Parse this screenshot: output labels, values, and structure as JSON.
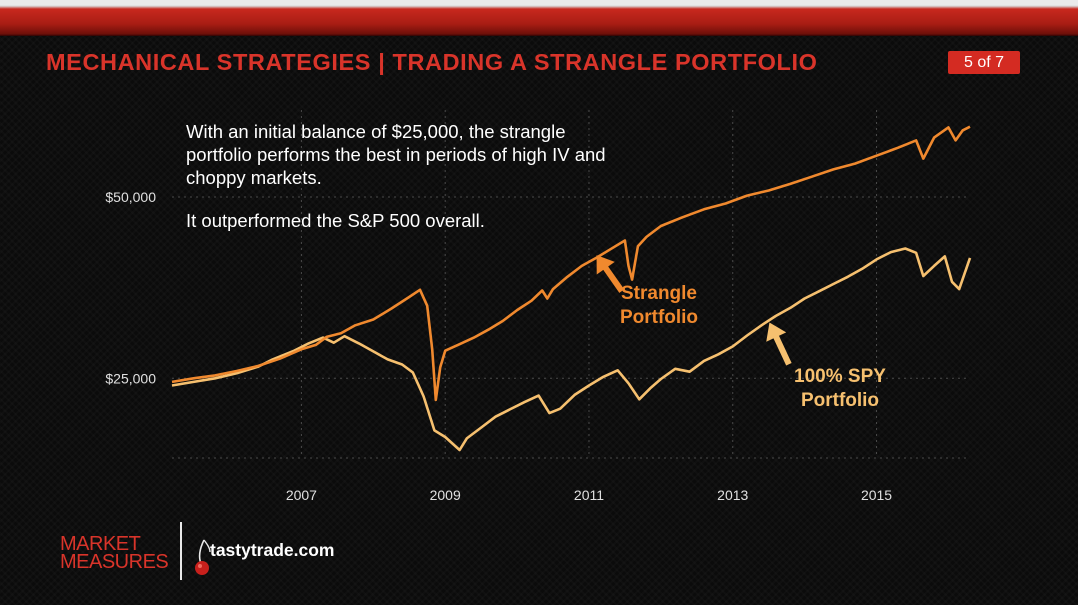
{
  "header": {
    "title": "MECHANICAL STRATEGIES | TRADING A STRANGLE PORTFOLIO",
    "page_indicator": "5 of 7"
  },
  "caption": {
    "paragraph1": "With an initial balance of $25,000, the strangle portfolio performs the best in periods of high IV and choppy markets.",
    "paragraph2": "It outperformed the S&P 500 overall."
  },
  "annotations": {
    "strangle": [
      "Strangle",
      "Portfolio"
    ],
    "spy": [
      "100% SPY",
      "Portfolio"
    ]
  },
  "footer": {
    "brand_line1": "MARKET",
    "brand_line2": "MEASURES",
    "partner": "tastytrade.com"
  },
  "colors": {
    "title_red": "#d9342a",
    "strangle": "#f0892e",
    "spy": "#f6c06f",
    "grid": "#4a4a4a"
  },
  "icons": [
    "up-arrow-icon",
    "cherry-icon"
  ],
  "chart_data": {
    "type": "line",
    "title": "",
    "xlabel": "",
    "ylabel": "",
    "xlim": [
      2005.2,
      2016.3
    ],
    "ylim": [
      14000,
      62000
    ],
    "x_ticks": [
      2007,
      2009,
      2011,
      2013,
      2015
    ],
    "y_ticks": [
      25000,
      50000
    ],
    "y_tick_labels": [
      "$25,000",
      "$50,000"
    ],
    "grid": true,
    "legend": "inline annotations",
    "series": [
      {
        "name": "Strangle Portfolio",
        "points": [
          [
            2005.2,
            24500
          ],
          [
            2005.5,
            25000
          ],
          [
            2005.8,
            25400
          ],
          [
            2006.1,
            26000
          ],
          [
            2006.4,
            26700
          ],
          [
            2006.7,
            27700
          ],
          [
            2007.0,
            29000
          ],
          [
            2007.2,
            29600
          ],
          [
            2007.35,
            30700
          ],
          [
            2007.55,
            31200
          ],
          [
            2007.75,
            32300
          ],
          [
            2008.0,
            33100
          ],
          [
            2008.25,
            34600
          ],
          [
            2008.5,
            36200
          ],
          [
            2008.65,
            37200
          ],
          [
            2008.75,
            35000
          ],
          [
            2008.82,
            29000
          ],
          [
            2008.87,
            22000
          ],
          [
            2008.93,
            26500
          ],
          [
            2009.0,
            28800
          ],
          [
            2009.2,
            29700
          ],
          [
            2009.4,
            30600
          ],
          [
            2009.6,
            31700
          ],
          [
            2009.8,
            32900
          ],
          [
            2010.0,
            34400
          ],
          [
            2010.2,
            35700
          ],
          [
            2010.35,
            37100
          ],
          [
            2010.42,
            36000
          ],
          [
            2010.5,
            37300
          ],
          [
            2010.7,
            39000
          ],
          [
            2010.9,
            40500
          ],
          [
            2011.1,
            41600
          ],
          [
            2011.3,
            42800
          ],
          [
            2011.5,
            44000
          ],
          [
            2011.55,
            40500
          ],
          [
            2011.6,
            38600
          ],
          [
            2011.68,
            43200
          ],
          [
            2011.8,
            44500
          ],
          [
            2012.0,
            46000
          ],
          [
            2012.3,
            47200
          ],
          [
            2012.6,
            48300
          ],
          [
            2012.9,
            49100
          ],
          [
            2013.2,
            50200
          ],
          [
            2013.5,
            50900
          ],
          [
            2013.8,
            51800
          ],
          [
            2014.1,
            52800
          ],
          [
            2014.4,
            53800
          ],
          [
            2014.7,
            54600
          ],
          [
            2015.0,
            55700
          ],
          [
            2015.3,
            56800
          ],
          [
            2015.55,
            57800
          ],
          [
            2015.65,
            55300
          ],
          [
            2015.8,
            58200
          ],
          [
            2016.0,
            59600
          ],
          [
            2016.1,
            57800
          ],
          [
            2016.2,
            59200
          ],
          [
            2016.3,
            59700
          ]
        ]
      },
      {
        "name": "100% SPY Portfolio",
        "points": [
          [
            2005.2,
            24000
          ],
          [
            2005.5,
            24500
          ],
          [
            2005.8,
            25000
          ],
          [
            2006.1,
            25700
          ],
          [
            2006.4,
            26600
          ],
          [
            2006.6,
            27600
          ],
          [
            2006.9,
            28800
          ],
          [
            2007.1,
            29800
          ],
          [
            2007.3,
            30600
          ],
          [
            2007.45,
            29900
          ],
          [
            2007.6,
            30800
          ],
          [
            2007.8,
            29800
          ],
          [
            2008.0,
            28700
          ],
          [
            2008.2,
            27600
          ],
          [
            2008.4,
            26900
          ],
          [
            2008.55,
            25800
          ],
          [
            2008.7,
            22500
          ],
          [
            2008.85,
            17800
          ],
          [
            2009.0,
            16900
          ],
          [
            2009.1,
            16000
          ],
          [
            2009.2,
            15100
          ],
          [
            2009.3,
            16700
          ],
          [
            2009.5,
            18200
          ],
          [
            2009.7,
            19700
          ],
          [
            2009.9,
            20700
          ],
          [
            2010.1,
            21700
          ],
          [
            2010.3,
            22600
          ],
          [
            2010.45,
            20200
          ],
          [
            2010.6,
            20800
          ],
          [
            2010.8,
            22700
          ],
          [
            2011.0,
            24000
          ],
          [
            2011.2,
            25200
          ],
          [
            2011.4,
            26100
          ],
          [
            2011.55,
            24300
          ],
          [
            2011.7,
            22100
          ],
          [
            2011.85,
            23600
          ],
          [
            2012.0,
            24900
          ],
          [
            2012.2,
            26300
          ],
          [
            2012.4,
            25900
          ],
          [
            2012.6,
            27400
          ],
          [
            2012.8,
            28300
          ],
          [
            2013.0,
            29400
          ],
          [
            2013.2,
            30900
          ],
          [
            2013.4,
            32300
          ],
          [
            2013.6,
            33600
          ],
          [
            2013.8,
            34700
          ],
          [
            2014.0,
            36000
          ],
          [
            2014.2,
            37000
          ],
          [
            2014.4,
            38000
          ],
          [
            2014.6,
            39000
          ],
          [
            2014.8,
            40100
          ],
          [
            2015.0,
            41400
          ],
          [
            2015.2,
            42400
          ],
          [
            2015.4,
            42900
          ],
          [
            2015.55,
            42300
          ],
          [
            2015.65,
            39100
          ],
          [
            2015.8,
            40500
          ],
          [
            2015.95,
            41800
          ],
          [
            2016.05,
            38300
          ],
          [
            2016.15,
            37300
          ],
          [
            2016.3,
            41600
          ]
        ]
      }
    ]
  }
}
